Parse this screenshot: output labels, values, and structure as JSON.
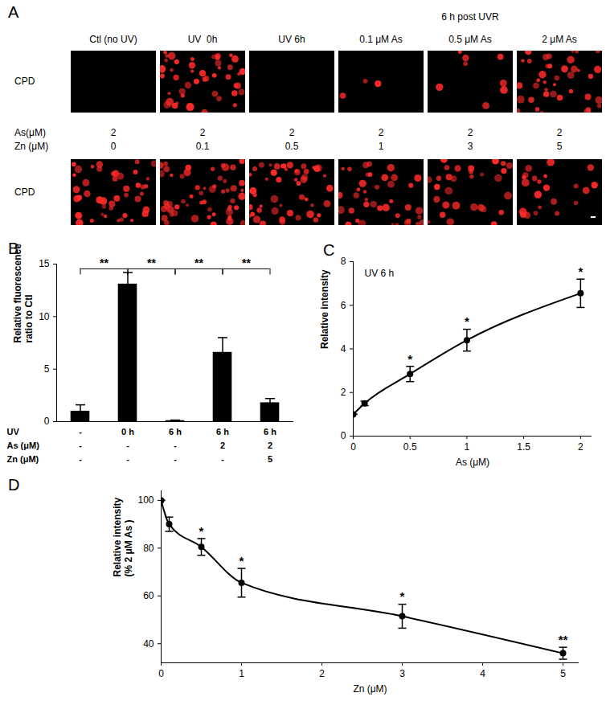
{
  "image_panel": {
    "title": "A",
    "group_title": "6 h post UVR",
    "stain": "CPD",
    "row1": [
      "Ctl (no UV)",
      "UV  0h",
      "UV 6h",
      "0.1 μM As",
      "0.5 μM As",
      "2 μM As"
    ],
    "row2": {
      "labels": [
        "As(μM)",
        "Zn (μM)"
      ],
      "As": [
        2,
        2,
        2,
        2,
        2,
        2
      ],
      "Zn": [
        0,
        0.1,
        0.5,
        1,
        3,
        5
      ]
    }
  },
  "chart_data": [
    {
      "type": "bar",
      "title": "B",
      "ylabel": "Relative fluorescence\nratio to Ctl",
      "categories": [
        null,
        null,
        null,
        null,
        null
      ],
      "values": [
        1,
        13.1,
        0.1,
        6.6,
        1.8
      ],
      "errors": [
        0.6,
        1.1,
        0.05,
        1.4,
        0.4
      ],
      "color": "#000000",
      "ylim": [
        0,
        15
      ],
      "yticks": [
        0,
        5,
        10,
        15
      ],
      "condition_rows": [
        {
          "label": "UV",
          "values": [
            "-",
            "0 h",
            "6 h",
            "6 h",
            "6 h"
          ]
        },
        {
          "label": "As (μM)",
          "values": [
            "-",
            "-",
            "-",
            "2",
            "2"
          ]
        },
        {
          "label": "Zn (μM)",
          "values": [
            "-",
            "-",
            "-",
            "-",
            "5"
          ]
        }
      ],
      "comparisons": [
        {
          "pair": [
            0,
            1
          ],
          "label": "**"
        },
        {
          "pair": [
            1,
            2
          ],
          "label": "**"
        },
        {
          "pair": [
            2,
            3
          ],
          "label": "**"
        },
        {
          "pair": [
            3,
            4
          ],
          "label": "**"
        }
      ]
    },
    {
      "type": "line",
      "title": "C",
      "annotation": "UV 6 h",
      "xlabel": "As (μM)",
      "ylabel": "Relative intensity",
      "x": [
        0,
        0.1,
        0.5,
        1,
        2
      ],
      "values": [
        1,
        1.5,
        2.85,
        4.4,
        6.55
      ],
      "errors": [
        0,
        0.1,
        0.35,
        0.5,
        0.65
      ],
      "significance": [
        null,
        null,
        "*",
        "*",
        "*"
      ],
      "color": "#000000",
      "marker": "circle",
      "xlim": [
        0,
        2.1
      ],
      "xticks": [
        0,
        0.5,
        1,
        1.5,
        2
      ],
      "ylim": [
        0,
        8
      ],
      "yticks": [
        0,
        2,
        4,
        6,
        8
      ]
    },
    {
      "type": "line",
      "title": "D",
      "xlabel": "Zn (μM)",
      "ylabel": "Relative intensity\n(% 2 μM As )",
      "x": [
        0,
        0.1,
        0.5,
        1,
        3,
        5
      ],
      "values": [
        100,
        90,
        80.5,
        65.5,
        51.5,
        36
      ],
      "errors": [
        0,
        3,
        3.5,
        6,
        5,
        2.5
      ],
      "significance": [
        null,
        null,
        "*",
        "*",
        "*",
        "**"
      ],
      "color": "#000000",
      "marker": "circle",
      "xlim": [
        0,
        5.2
      ],
      "xticks": [
        0,
        1,
        2,
        3,
        4,
        5
      ],
      "ylim": [
        32,
        104
      ],
      "yticks": [
        40,
        60,
        80,
        100
      ]
    }
  ]
}
